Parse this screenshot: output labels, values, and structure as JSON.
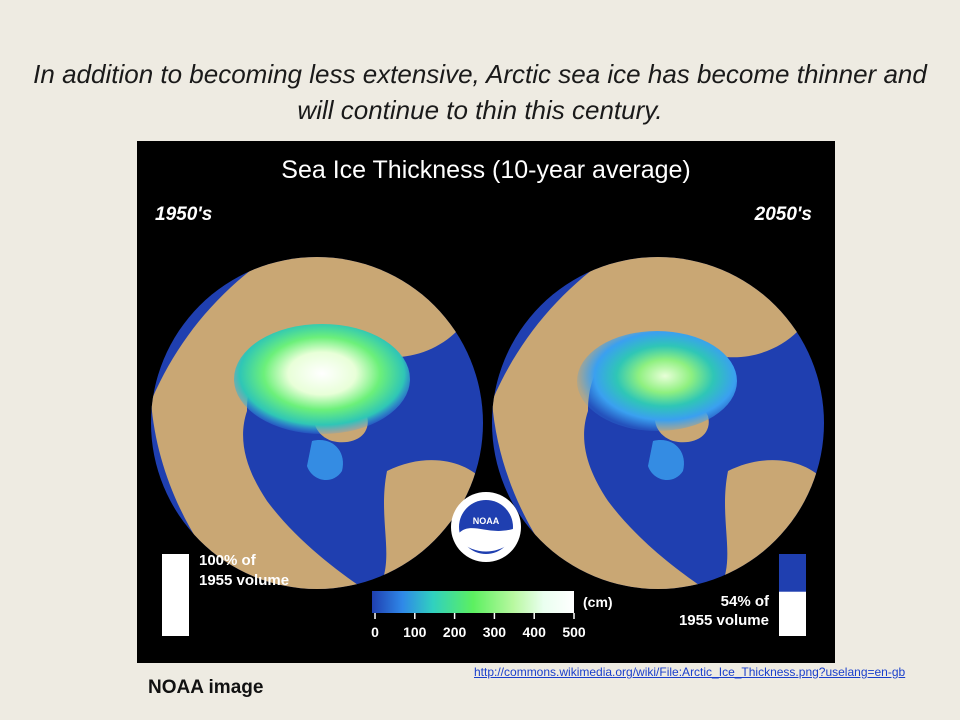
{
  "slide": {
    "title": "In addition to becoming less extensive, Arctic sea ice has become thinner and will continue to thin this century.",
    "caption": "NOAA image",
    "source_url": "http://commons.wikimedia.org/wiki/File:Arctic_Ice_Thickness.png?uselang=en-gb"
  },
  "figure": {
    "title": "Sea Ice Thickness (10-year average)",
    "left_label": "1950's",
    "right_label": "2050's",
    "left_volume_line1": "100% of",
    "left_volume_line2": "1955 volume",
    "left_volume_fraction": 1.0,
    "right_volume_line1": "54% of",
    "right_volume_line2": "1955 volume",
    "right_volume_fraction": 0.54,
    "colorbar_unit": "(cm)",
    "colorbar_ticks": [
      "0",
      "100",
      "200",
      "300",
      "400",
      "500"
    ],
    "logo": "NOAA",
    "colors": {
      "ocean": "#1f3fb0",
      "land": "#c9a774",
      "ice_thin": "#3aa0f0",
      "ice_mid": "#6cf07a",
      "ice_thick": "#ffffff",
      "background": "#000000"
    }
  }
}
